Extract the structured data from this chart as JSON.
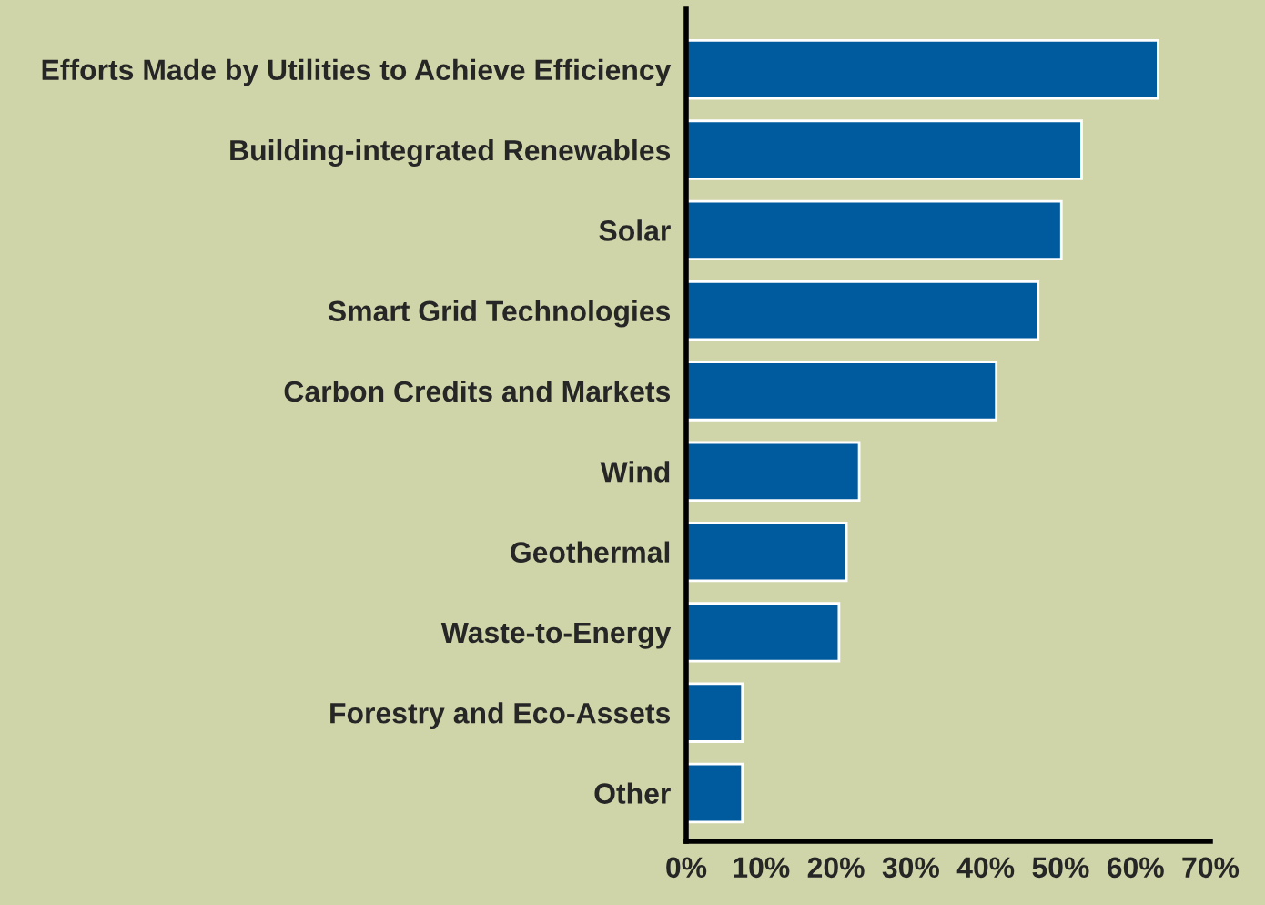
{
  "chart_data": {
    "type": "bar",
    "orientation": "horizontal",
    "categories": [
      "Efforts Made by Utilities to Achieve Efficiency",
      "Building-integrated Renewables",
      "Solar",
      "Smart Grid Technologies",
      "Carbon Credits and Markets",
      "Wind",
      "Geothermal",
      "Waste-to-Energy",
      "Forestry and Eco-Assets",
      "Other"
    ],
    "values": [
      63,
      52.8,
      50.1,
      47,
      41.4,
      23.1,
      21.4,
      20.4,
      7.5,
      7.5
    ],
    "color": "#005a9e",
    "xlim": [
      0,
      70
    ],
    "xticks": [
      {
        "value": 0,
        "label": "0%"
      },
      {
        "value": 10,
        "label": "10%"
      },
      {
        "value": 20,
        "label": "20%"
      },
      {
        "value": 30,
        "label": "30%"
      },
      {
        "value": 40,
        "label": "40%"
      },
      {
        "value": 50,
        "label": "50%"
      },
      {
        "value": 60,
        "label": "60%"
      },
      {
        "value": 70,
        "label": "70%"
      }
    ],
    "grid": false,
    "legend": false
  }
}
